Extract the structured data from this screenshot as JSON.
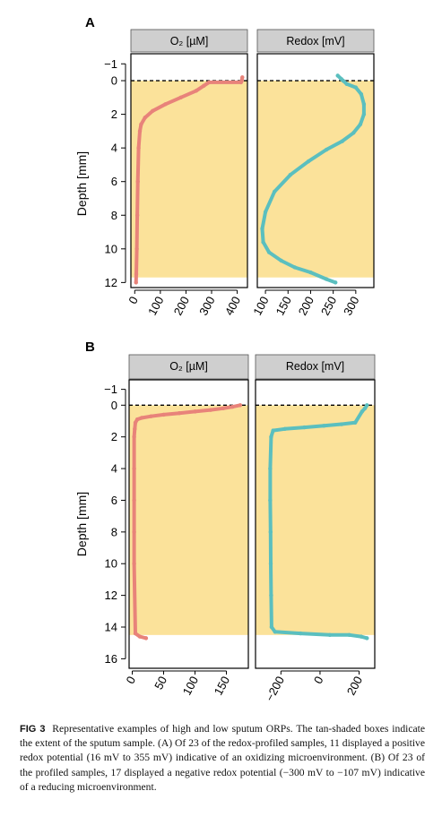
{
  "caption": {
    "label": "FIG 3",
    "text": "Representative examples of high and low sputum ORPs. The tan-shaded boxes indicate the extent of the sputum sample. (A) Of 23 of the redox-profiled samples, 11 displayed a positive redox potential (16 mV to 355 mV) indicative of an oxidizing microenvironment. (B) Of 23 of the profiled samples, 17 displayed a negative redox potential (−300 mV to −107 mV) indicative of a reducing microenvironment."
  },
  "colors": {
    "sputum": "#fbe29a",
    "o2": "#e8837a",
    "redox": "#5bbfbf",
    "strip": "#cfcfcf"
  },
  "chart_data": [
    {
      "type": "line",
      "panel": "A",
      "ylabel": "Depth [mm]",
      "ylim": [
        12.3,
        -1.6
      ],
      "yticks": [
        -1,
        0,
        2,
        4,
        6,
        8,
        10,
        12
      ],
      "sputum_depth": [
        0,
        11.7
      ],
      "subplots": [
        {
          "strip": "O₂ [µM]",
          "xlim": [
            -15,
            440
          ],
          "xticks": [
            0,
            100,
            200,
            300,
            400
          ],
          "series": [
            {
              "x": [
                420,
                418,
                415,
                290,
                270,
                240,
                180,
                120,
                70,
                40,
                25,
                20,
                15,
                12,
                10,
                8,
                6,
                5
              ],
              "y": [
                -0.2,
                0,
                0.1,
                0.1,
                0.3,
                0.6,
                1.0,
                1.4,
                1.8,
                2.2,
                2.6,
                3.0,
                4.0,
                6.0,
                8.0,
                10.0,
                11.5,
                12.0
              ]
            }
          ]
        },
        {
          "strip": "Redox [mV]",
          "xlim": [
            82,
            340
          ],
          "xticks": [
            100,
            150,
            200,
            250,
            300
          ],
          "series": [
            {
              "x": [
                260,
                268,
                272,
                280,
                300,
                312,
                318,
                318,
                310,
                295,
                270,
                235,
                195,
                155,
                120,
                100,
                93,
                95,
                108,
                135,
                165,
                200,
                235,
                255
              ],
              "y": [
                -0.3,
                -0.1,
                0,
                0.2,
                0.4,
                0.8,
                1.4,
                2.0,
                2.6,
                3.1,
                3.6,
                4.1,
                4.8,
                5.6,
                6.6,
                7.8,
                8.8,
                9.6,
                10.2,
                10.7,
                11.1,
                11.4,
                11.8,
                12.0
              ]
            }
          ]
        }
      ]
    },
    {
      "type": "line",
      "panel": "B",
      "ylabel": "Depth [mm]",
      "ylim": [
        16.6,
        -1.6
      ],
      "yticks": [
        -1,
        0,
        2,
        4,
        6,
        8,
        10,
        12,
        14,
        16
      ],
      "sputum_depth": [
        0,
        14.5
      ],
      "subplots": [
        {
          "strip": "O₂ [µM]",
          "xlim": [
            -5,
            185
          ],
          "xticks": [
            0,
            50,
            100,
            150
          ],
          "series": [
            {
              "x": [
                172,
                160,
                145,
                125,
                100,
                75,
                50,
                30,
                15,
                8,
                5,
                4,
                3,
                3,
                3,
                3,
                3,
                5,
                12,
                22
              ],
              "y": [
                0,
                0.1,
                0.2,
                0.3,
                0.4,
                0.5,
                0.6,
                0.7,
                0.8,
                0.9,
                1.1,
                1.5,
                2.0,
                4.0,
                6.0,
                8.0,
                10.0,
                14.4,
                14.6,
                14.7
              ]
            }
          ]
        },
        {
          "strip": "Redox [mV]",
          "xlim": [
            -330,
            280
          ],
          "xticks": [
            -200,
            0,
            200
          ],
          "series": [
            {
              "x": [
                240,
                230,
                215,
                180,
                110,
                20,
                -80,
                -180,
                -240,
                -250,
                -255,
                -255,
                -253,
                -252,
                -250,
                -248,
                -230,
                -100,
                50,
                150,
                210,
                240
              ],
              "y": [
                0,
                0.2,
                0.4,
                1.1,
                1.2,
                1.3,
                1.4,
                1.5,
                1.6,
                2.0,
                4.0,
                6.0,
                8.0,
                10.0,
                12.0,
                14.0,
                14.3,
                14.4,
                14.5,
                14.5,
                14.6,
                14.7
              ]
            }
          ]
        }
      ]
    }
  ]
}
